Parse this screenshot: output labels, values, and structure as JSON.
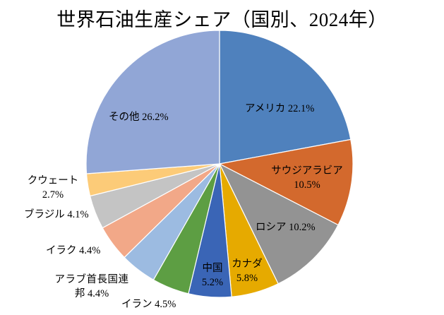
{
  "chart_data": {
    "type": "pie",
    "title": "世界石油生産シェア（国別、2024年）",
    "slices": [
      {
        "name": "アメリカ",
        "value": 22.1,
        "value_label": "22.1%",
        "color": "#4F81BD"
      },
      {
        "name": "サウジアラビア",
        "value": 10.5,
        "value_label": "10.5%",
        "color": "#D3692D"
      },
      {
        "name": "ロシア",
        "value": 10.2,
        "value_label": "10.2%",
        "color": "#939393"
      },
      {
        "name": "カナダ",
        "value": 5.8,
        "value_label": "5.8%",
        "color": "#E6AA00"
      },
      {
        "name": "中国",
        "value": 5.2,
        "value_label": "5.2%",
        "color": "#3A65B6"
      },
      {
        "name": "イラン",
        "value": 4.5,
        "value_label": "4.5%",
        "color": "#5D9E43"
      },
      {
        "name": "アラブ首長国連邦",
        "value": 4.4,
        "value_label": "4.4%",
        "color": "#9CBBE1"
      },
      {
        "name": "イラク",
        "value": 4.4,
        "value_label": "4.4%",
        "color": "#F2A888"
      },
      {
        "name": "ブラジル",
        "value": 4.1,
        "value_label": "4.1%",
        "color": "#C4C4C4"
      },
      {
        "name": "クウェート",
        "value": 2.7,
        "value_label": "2.7%",
        "color": "#FCCB78"
      },
      {
        "name": "その他",
        "value": 26.2,
        "value_label": "26.2%",
        "color": "#91A6D6"
      }
    ]
  }
}
